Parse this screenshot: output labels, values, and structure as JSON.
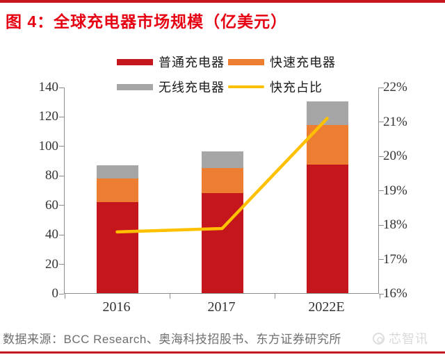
{
  "title": "图 4：全球充电器市场规模（亿美元）",
  "source": "数据来源：BCC Research、奥海科技招股书、东方证券研究所",
  "watermark": "芯智讯",
  "colors": {
    "accent_red": "#c4161c",
    "title_red": "#e60012",
    "bar_red": "#c4161c",
    "bar_orange": "#ed7d31",
    "bar_gray": "#a6a6a6",
    "line_yellow": "#ffc000",
    "axis_gray": "#8c8c8c",
    "source_gray": "#6e6e6e",
    "watermark_gray": "#d9d9d9"
  },
  "chart_data": {
    "type": "bar",
    "subtype": "stacked-bars-with-line-overlay",
    "title": "全球充电器市场规模（亿美元）",
    "categories": [
      "2016",
      "2017",
      "2022E"
    ],
    "series": [
      {
        "name": "普通充电器",
        "type": "bar",
        "axis": "left",
        "color": "#c4161c",
        "values": [
          62,
          68,
          87
        ]
      },
      {
        "name": "快速充电器",
        "type": "bar",
        "axis": "left",
        "color": "#ed7d31",
        "values": [
          16,
          17,
          27
        ]
      },
      {
        "name": "无线充电器",
        "type": "bar",
        "axis": "left",
        "color": "#a6a6a6",
        "values": [
          9,
          11,
          16
        ]
      },
      {
        "name": "快充占比",
        "type": "line",
        "axis": "right",
        "color": "#ffc000",
        "values": [
          17.8,
          17.9,
          21.1
        ]
      }
    ],
    "stacked_totals": [
      87,
      96,
      130
    ],
    "left_axis": {
      "min": 0,
      "max": 140,
      "step": 20,
      "ticks": [
        "0",
        "20",
        "40",
        "60",
        "80",
        "100",
        "120",
        "140"
      ]
    },
    "right_axis": {
      "min": 16,
      "max": 22,
      "step": 1,
      "unit": "%",
      "ticks": [
        "16%",
        "17%",
        "18%",
        "19%",
        "20%",
        "21%",
        "22%"
      ]
    },
    "legend_position": "top",
    "grid": false
  }
}
